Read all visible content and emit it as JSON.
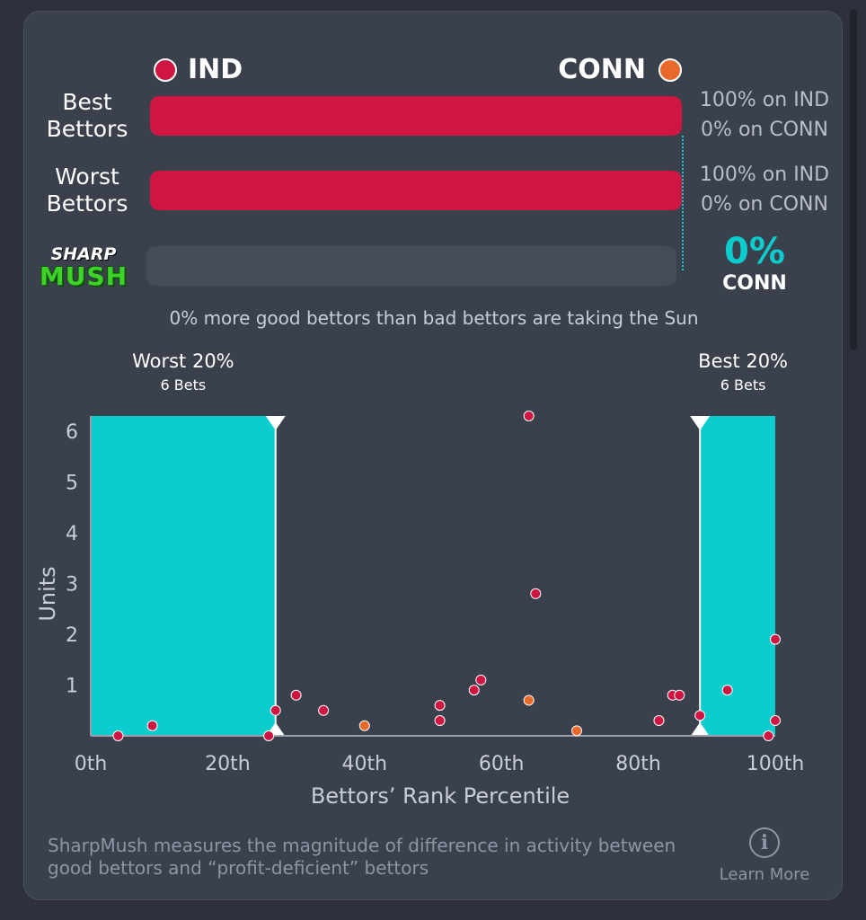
{
  "teams": {
    "left": {
      "name": "IND",
      "color": "#cf1542"
    },
    "right": {
      "name": "CONN",
      "color": "#e8692a"
    }
  },
  "rows": [
    {
      "label_line1": "Best",
      "label_line2": "Bettors",
      "left_pct": 1.0,
      "text_left": "100% on IND",
      "text_right": "0% on CONN"
    },
    {
      "label_line1": "Worst",
      "label_line2": "Bettors",
      "left_pct": 1.0,
      "text_left": "100% on IND",
      "text_right": "0% on CONN"
    }
  ],
  "sharpmush": {
    "logo_line1": "SHARP",
    "logo_line2": "MUSH",
    "value": "0%",
    "team": "CONN",
    "summary": "0% more good bettors than bad bettors are taking the Sun"
  },
  "accent_color": "#0ccccd",
  "chart_data": {
    "type": "scatter",
    "xlabel": "Bettors’ Rank Percentile",
    "ylabel": "Units",
    "xlim": [
      0,
      100
    ],
    "ylim": [
      0,
      6.3
    ],
    "xticks": [
      0,
      20,
      40,
      60,
      80,
      100
    ],
    "xtick_labels": [
      "0th",
      "20th",
      "40th",
      "60th",
      "80th",
      "100th"
    ],
    "yticks": [
      1,
      2,
      3,
      4,
      5,
      6
    ],
    "ytick_labels": [
      "1",
      "2",
      "3",
      "4",
      "5",
      "6"
    ],
    "grid": false,
    "shaded_regions": [
      {
        "label": "Worst 20%",
        "sublabel": "6 Bets",
        "x0": 0,
        "x1": 27
      },
      {
        "label": "Best 20%",
        "sublabel": "6 Bets",
        "x0": 89,
        "x1": 100
      }
    ],
    "series": [
      {
        "team": "IND",
        "color": "#cf1542",
        "points": [
          {
            "x": 4,
            "y": 0.0
          },
          {
            "x": 9,
            "y": 0.2
          },
          {
            "x": 26,
            "y": 0.0
          },
          {
            "x": 27,
            "y": 0.5
          },
          {
            "x": 30,
            "y": 0.8
          },
          {
            "x": 34,
            "y": 0.5
          },
          {
            "x": 51,
            "y": 0.6
          },
          {
            "x": 51,
            "y": 0.3
          },
          {
            "x": 56,
            "y": 0.9
          },
          {
            "x": 57,
            "y": 1.1
          },
          {
            "x": 64,
            "y": 6.3
          },
          {
            "x": 65,
            "y": 2.8
          },
          {
            "x": 83,
            "y": 0.3
          },
          {
            "x": 85,
            "y": 0.8
          },
          {
            "x": 86,
            "y": 0.8
          },
          {
            "x": 89,
            "y": 0.4
          },
          {
            "x": 93,
            "y": 0.9
          },
          {
            "x": 99,
            "y": 0.0
          },
          {
            "x": 100,
            "y": 1.9
          },
          {
            "x": 100,
            "y": 0.3
          }
        ]
      },
      {
        "team": "CONN",
        "color": "#e8692a",
        "points": [
          {
            "x": 40,
            "y": 0.2
          },
          {
            "x": 64,
            "y": 0.7
          },
          {
            "x": 71,
            "y": 0.1
          }
        ]
      }
    ]
  },
  "footer": {
    "description": "SharpMush measures the magnitude of difference in activity between good bettors and “profit-deficient” bettors",
    "learn_more": "Learn More",
    "info_symbol": "i"
  }
}
